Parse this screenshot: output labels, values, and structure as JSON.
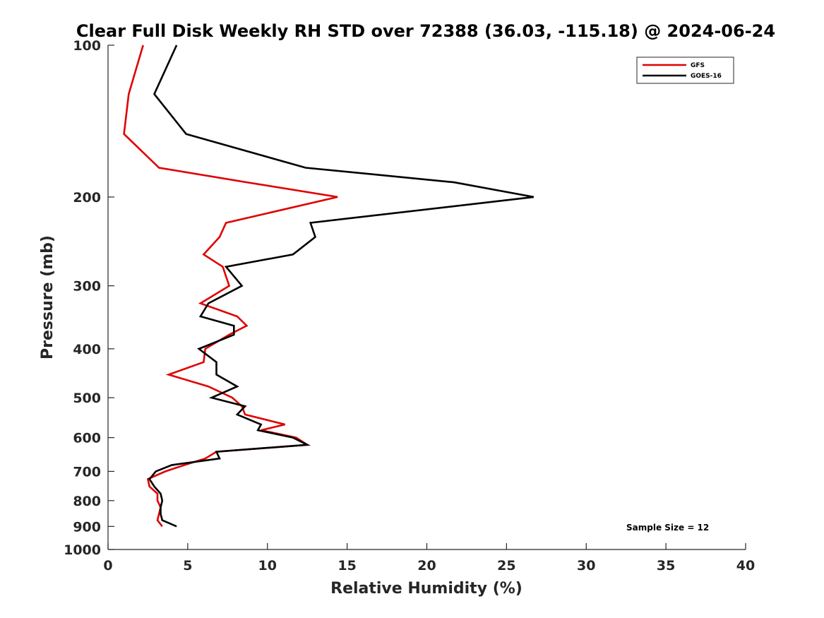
{
  "chart_data": {
    "type": "line",
    "title": "Clear Full Disk Weekly RH STD over 72388 (36.03, -115.18) @ 2024-06-24",
    "xlabel": "Relative Humidity (%)",
    "ylabel": "Pressure (mb)",
    "xlim": [
      0,
      40
    ],
    "ylim": [
      100,
      1000
    ],
    "y_scale": "log",
    "y_reversed": true,
    "grid": false,
    "legend_position": "top-right",
    "x_ticks": [
      0,
      5,
      10,
      15,
      20,
      25,
      30,
      35,
      40
    ],
    "x_tick_labels": [
      "0",
      "5",
      "10",
      "15",
      "20",
      "25",
      "30",
      "35",
      "40"
    ],
    "y_ticks": [
      100,
      200,
      300,
      400,
      500,
      600,
      700,
      800,
      900,
      1000
    ],
    "y_tick_labels": [
      "100",
      "200",
      "300",
      "400",
      "500",
      "600",
      "700",
      "800",
      "900",
      "1000"
    ],
    "series": [
      {
        "name": "GFS",
        "color": "#e00000",
        "points": [
          [
            2.2,
            100
          ],
          [
            1.3,
            125
          ],
          [
            1.0,
            150
          ],
          [
            3.2,
            175
          ],
          [
            8.7,
            187
          ],
          [
            14.4,
            200
          ],
          [
            7.4,
            225
          ],
          [
            7.0,
            240
          ],
          [
            6.0,
            260
          ],
          [
            7.2,
            275
          ],
          [
            7.6,
            300
          ],
          [
            5.8,
            325
          ],
          [
            8.1,
            345
          ],
          [
            8.7,
            360
          ],
          [
            7.6,
            375
          ],
          [
            6.1,
            400
          ],
          [
            6.0,
            425
          ],
          [
            3.8,
            450
          ],
          [
            6.3,
            475
          ],
          [
            7.8,
            500
          ],
          [
            8.4,
            520
          ],
          [
            8.6,
            540
          ],
          [
            11.1,
            565
          ],
          [
            9.6,
            580
          ],
          [
            11.8,
            600
          ],
          [
            12.5,
            620
          ],
          [
            6.8,
            640
          ],
          [
            6.1,
            660
          ],
          [
            4.8,
            680
          ],
          [
            3.6,
            700
          ],
          [
            2.5,
            725
          ],
          [
            2.6,
            750
          ],
          [
            3.1,
            775
          ],
          [
            3.1,
            800
          ],
          [
            3.3,
            825
          ],
          [
            3.2,
            850
          ],
          [
            3.1,
            875
          ],
          [
            3.4,
            900
          ]
        ]
      },
      {
        "name": "GOES-16",
        "color": "#000000",
        "points": [
          [
            4.3,
            100
          ],
          [
            2.9,
            125
          ],
          [
            4.9,
            150
          ],
          [
            12.4,
            175
          ],
          [
            21.7,
            187
          ],
          [
            26.7,
            200
          ],
          [
            12.7,
            225
          ],
          [
            13.0,
            240
          ],
          [
            11.6,
            260
          ],
          [
            7.4,
            275
          ],
          [
            8.4,
            300
          ],
          [
            6.3,
            325
          ],
          [
            5.8,
            345
          ],
          [
            7.9,
            360
          ],
          [
            7.9,
            375
          ],
          [
            5.7,
            400
          ],
          [
            6.8,
            425
          ],
          [
            6.8,
            450
          ],
          [
            8.1,
            475
          ],
          [
            6.5,
            500
          ],
          [
            8.6,
            520
          ],
          [
            8.1,
            540
          ],
          [
            9.6,
            565
          ],
          [
            9.4,
            580
          ],
          [
            11.6,
            600
          ],
          [
            12.5,
            620
          ],
          [
            6.8,
            640
          ],
          [
            7.0,
            660
          ],
          [
            4.0,
            680
          ],
          [
            3.0,
            700
          ],
          [
            2.6,
            725
          ],
          [
            2.9,
            750
          ],
          [
            3.3,
            775
          ],
          [
            3.4,
            800
          ],
          [
            3.3,
            825
          ],
          [
            3.3,
            850
          ],
          [
            3.4,
            875
          ],
          [
            4.3,
            900
          ]
        ]
      }
    ],
    "annotations": [
      {
        "text": "Sample Size = 12"
      }
    ]
  }
}
